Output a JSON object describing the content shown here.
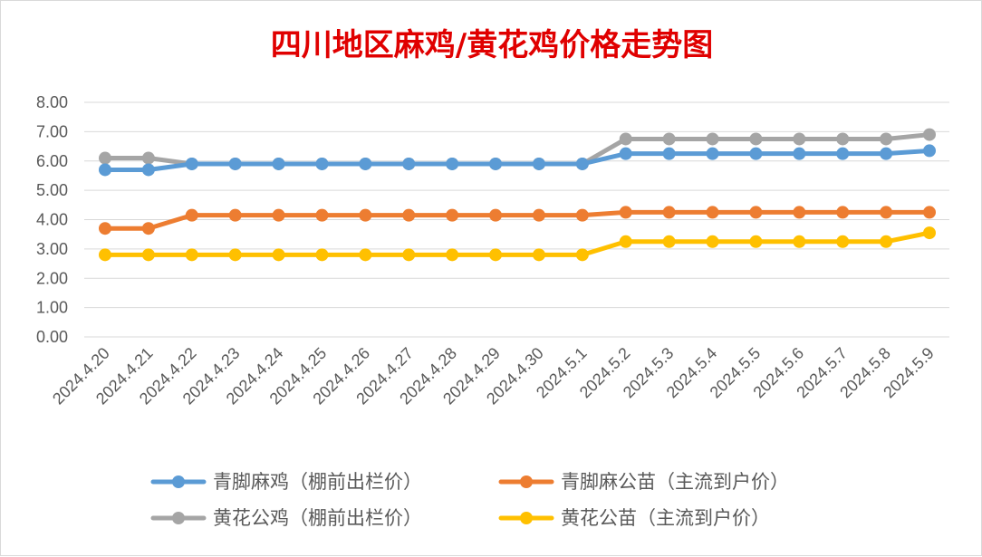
{
  "chart_data": {
    "type": "line",
    "title": "四川地区麻鸡/黄花鸡价格走势图",
    "xlabel": "",
    "ylabel": "",
    "ylim": [
      0,
      8
    ],
    "ytick_labels": [
      "0.00",
      "1.00",
      "2.00",
      "3.00",
      "4.00",
      "5.00",
      "6.00",
      "7.00",
      "8.00"
    ],
    "grid": true,
    "legend_position": "bottom",
    "categories": [
      "2024.4.20",
      "2024.4.21",
      "2024.4.22",
      "2024.4.23",
      "2024.4.24",
      "2024.4.25",
      "2024.4.26",
      "2024.4.27",
      "2024.4.28",
      "2024.4.29",
      "2024.4.30",
      "2024.5.1",
      "2024.5.2",
      "2024.5.3",
      "2024.5.4",
      "2024.5.5",
      "2024.5.6",
      "2024.5.7",
      "2024.5.8",
      "2024.5.9"
    ],
    "series": [
      {
        "name": "青脚麻鸡（棚前出栏价）",
        "color": "#5b9bd5",
        "values": [
          5.7,
          5.7,
          5.9,
          5.9,
          5.9,
          5.9,
          5.9,
          5.9,
          5.9,
          5.9,
          5.9,
          5.9,
          6.25,
          6.25,
          6.25,
          6.25,
          6.25,
          6.25,
          6.25,
          6.35
        ]
      },
      {
        "name": "青脚麻公苗（主流到户价）",
        "color": "#ed7d31",
        "values": [
          3.7,
          3.7,
          4.15,
          4.15,
          4.15,
          4.15,
          4.15,
          4.15,
          4.15,
          4.15,
          4.15,
          4.15,
          4.25,
          4.25,
          4.25,
          4.25,
          4.25,
          4.25,
          4.25,
          4.25
        ]
      },
      {
        "name": "黄花公鸡（棚前出栏价）",
        "color": "#a5a5a5",
        "values": [
          6.1,
          6.1,
          5.9,
          5.9,
          5.9,
          5.9,
          5.9,
          5.9,
          5.9,
          5.9,
          5.9,
          5.9,
          6.75,
          6.75,
          6.75,
          6.75,
          6.75,
          6.75,
          6.75,
          6.9
        ]
      },
      {
        "name": "黄花公苗（主流到户价）",
        "color": "#ffc000",
        "values": [
          2.8,
          2.8,
          2.8,
          2.8,
          2.8,
          2.8,
          2.8,
          2.8,
          2.8,
          2.8,
          2.8,
          2.8,
          3.25,
          3.25,
          3.25,
          3.25,
          3.25,
          3.25,
          3.25,
          3.55
        ]
      }
    ],
    "colors": {
      "title": "#e00000",
      "axis_text": "#595959",
      "grid": "#d9d9d9"
    }
  }
}
